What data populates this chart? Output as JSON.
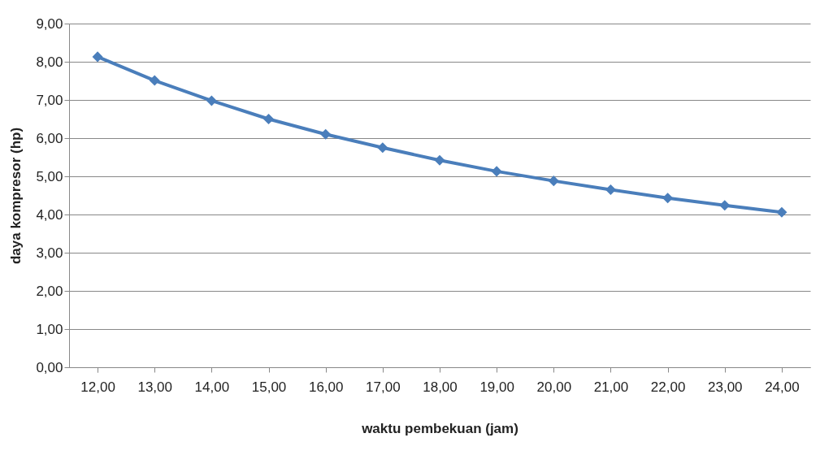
{
  "chart_data": {
    "type": "line",
    "xlabel": "waktu pembekuan (jam)",
    "ylabel": "daya kompresor (hp)",
    "categories": [
      "12,00",
      "13,00",
      "14,00",
      "15,00",
      "16,00",
      "17,00",
      "18,00",
      "19,00",
      "20,00",
      "21,00",
      "22,00",
      "23,00",
      "24,00"
    ],
    "series": [
      {
        "color": "#4a7ebb",
        "values": [
          8.13,
          7.51,
          6.98,
          6.5,
          6.1,
          5.75,
          5.42,
          5.13,
          4.88,
          4.65,
          4.43,
          4.24,
          4.06
        ]
      }
    ],
    "ylim": [
      0,
      9
    ],
    "yticks": [
      {
        "value": 0,
        "label": "0,00"
      },
      {
        "value": 1,
        "label": "1,00"
      },
      {
        "value": 2,
        "label": "2,00"
      },
      {
        "value": 3,
        "label": "3,00"
      },
      {
        "value": 4,
        "label": "4,00"
      },
      {
        "value": 5,
        "label": "5,00"
      },
      {
        "value": 6,
        "label": "6,00"
      },
      {
        "value": 7,
        "label": "7,00"
      },
      {
        "value": 8,
        "label": "8,00"
      },
      {
        "value": 9,
        "label": "9,00"
      }
    ],
    "grid": "y",
    "marker": "diamond",
    "line_style": "solid"
  }
}
